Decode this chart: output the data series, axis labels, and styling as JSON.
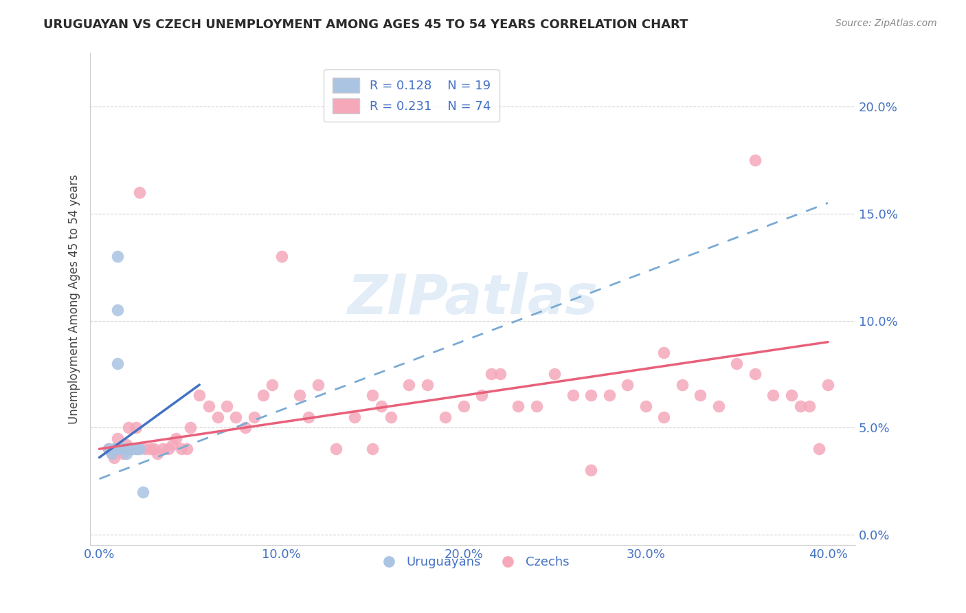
{
  "title": "URUGUAYAN VS CZECH UNEMPLOYMENT AMONG AGES 45 TO 54 YEARS CORRELATION CHART",
  "source": "Source: ZipAtlas.com",
  "ylabel": "Unemployment Among Ages 45 to 54 years",
  "background_color": "#ffffff",
  "grid_color": "#c8c8c8",
  "watermark": "ZIPatlas",
  "xlim": [
    -0.005,
    0.415
  ],
  "ylim": [
    -0.005,
    0.225
  ],
  "yticks": [
    0.0,
    0.05,
    0.1,
    0.15,
    0.2
  ],
  "ytick_labels": [
    "0.0%",
    "5.0%",
    "10.0%",
    "15.0%",
    "20.0%"
  ],
  "xticks": [
    0.0,
    0.1,
    0.2,
    0.3,
    0.4
  ],
  "xtick_labels": [
    "0.0%",
    "10.0%",
    "20.0%",
    "30.0%",
    "40.0%"
  ],
  "legend_r1": "R = 0.128",
  "legend_n1": "N = 19",
  "legend_r2": "R = 0.231",
  "legend_n2": "N = 74",
  "uruguayan_color": "#aac4e2",
  "czech_color": "#f5a8ba",
  "line_blue_color": "#4472c4",
  "line_pink_color": "#e8607a",
  "line_dash_color": "#7aaad4",
  "uruguayan_x": [
    0.005,
    0.007,
    0.008,
    0.009,
    0.01,
    0.01,
    0.01,
    0.012,
    0.013,
    0.014,
    0.015,
    0.015,
    0.016,
    0.017,
    0.018,
    0.02,
    0.021,
    0.022,
    0.024
  ],
  "uruguayan_y": [
    0.04,
    0.038,
    0.04,
    0.04,
    0.13,
    0.105,
    0.08,
    0.04,
    0.04,
    0.04,
    0.04,
    0.038,
    0.04,
    0.04,
    0.04,
    0.04,
    0.04,
    0.04,
    0.02
  ],
  "czech_x": [
    0.005,
    0.007,
    0.008,
    0.01,
    0.01,
    0.012,
    0.013,
    0.014,
    0.015,
    0.016,
    0.017,
    0.018,
    0.02,
    0.022,
    0.025,
    0.028,
    0.03,
    0.032,
    0.035,
    0.038,
    0.04,
    0.042,
    0.045,
    0.048,
    0.05,
    0.055,
    0.06,
    0.065,
    0.07,
    0.075,
    0.08,
    0.085,
    0.09,
    0.095,
    0.1,
    0.11,
    0.115,
    0.12,
    0.13,
    0.14,
    0.15,
    0.155,
    0.16,
    0.17,
    0.18,
    0.19,
    0.2,
    0.21,
    0.215,
    0.22,
    0.23,
    0.24,
    0.25,
    0.26,
    0.27,
    0.28,
    0.29,
    0.3,
    0.31,
    0.32,
    0.33,
    0.34,
    0.35,
    0.36,
    0.37,
    0.38,
    0.385,
    0.39,
    0.395,
    0.4,
    0.27,
    0.31,
    0.36,
    0.15
  ],
  "czech_y": [
    0.04,
    0.038,
    0.036,
    0.04,
    0.045,
    0.04,
    0.038,
    0.04,
    0.042,
    0.05,
    0.04,
    0.04,
    0.05,
    0.16,
    0.04,
    0.04,
    0.04,
    0.038,
    0.04,
    0.04,
    0.042,
    0.045,
    0.04,
    0.04,
    0.05,
    0.065,
    0.06,
    0.055,
    0.06,
    0.055,
    0.05,
    0.055,
    0.065,
    0.07,
    0.13,
    0.065,
    0.055,
    0.07,
    0.04,
    0.055,
    0.065,
    0.06,
    0.055,
    0.07,
    0.07,
    0.055,
    0.06,
    0.065,
    0.075,
    0.075,
    0.06,
    0.06,
    0.075,
    0.065,
    0.065,
    0.065,
    0.07,
    0.06,
    0.055,
    0.07,
    0.065,
    0.06,
    0.08,
    0.075,
    0.065,
    0.065,
    0.06,
    0.06,
    0.04,
    0.07,
    0.03,
    0.085,
    0.175,
    0.04
  ],
  "blue_line_x": [
    0.0,
    0.055
  ],
  "blue_line_y": [
    0.036,
    0.07
  ],
  "dash_line_x0": 0.0,
  "dash_line_y0": 0.026,
  "dash_line_x1": 0.4,
  "dash_line_y1": 0.155,
  "pink_line_x0": 0.0,
  "pink_line_y0": 0.04,
  "pink_line_x1": 0.4,
  "pink_line_y1": 0.09
}
